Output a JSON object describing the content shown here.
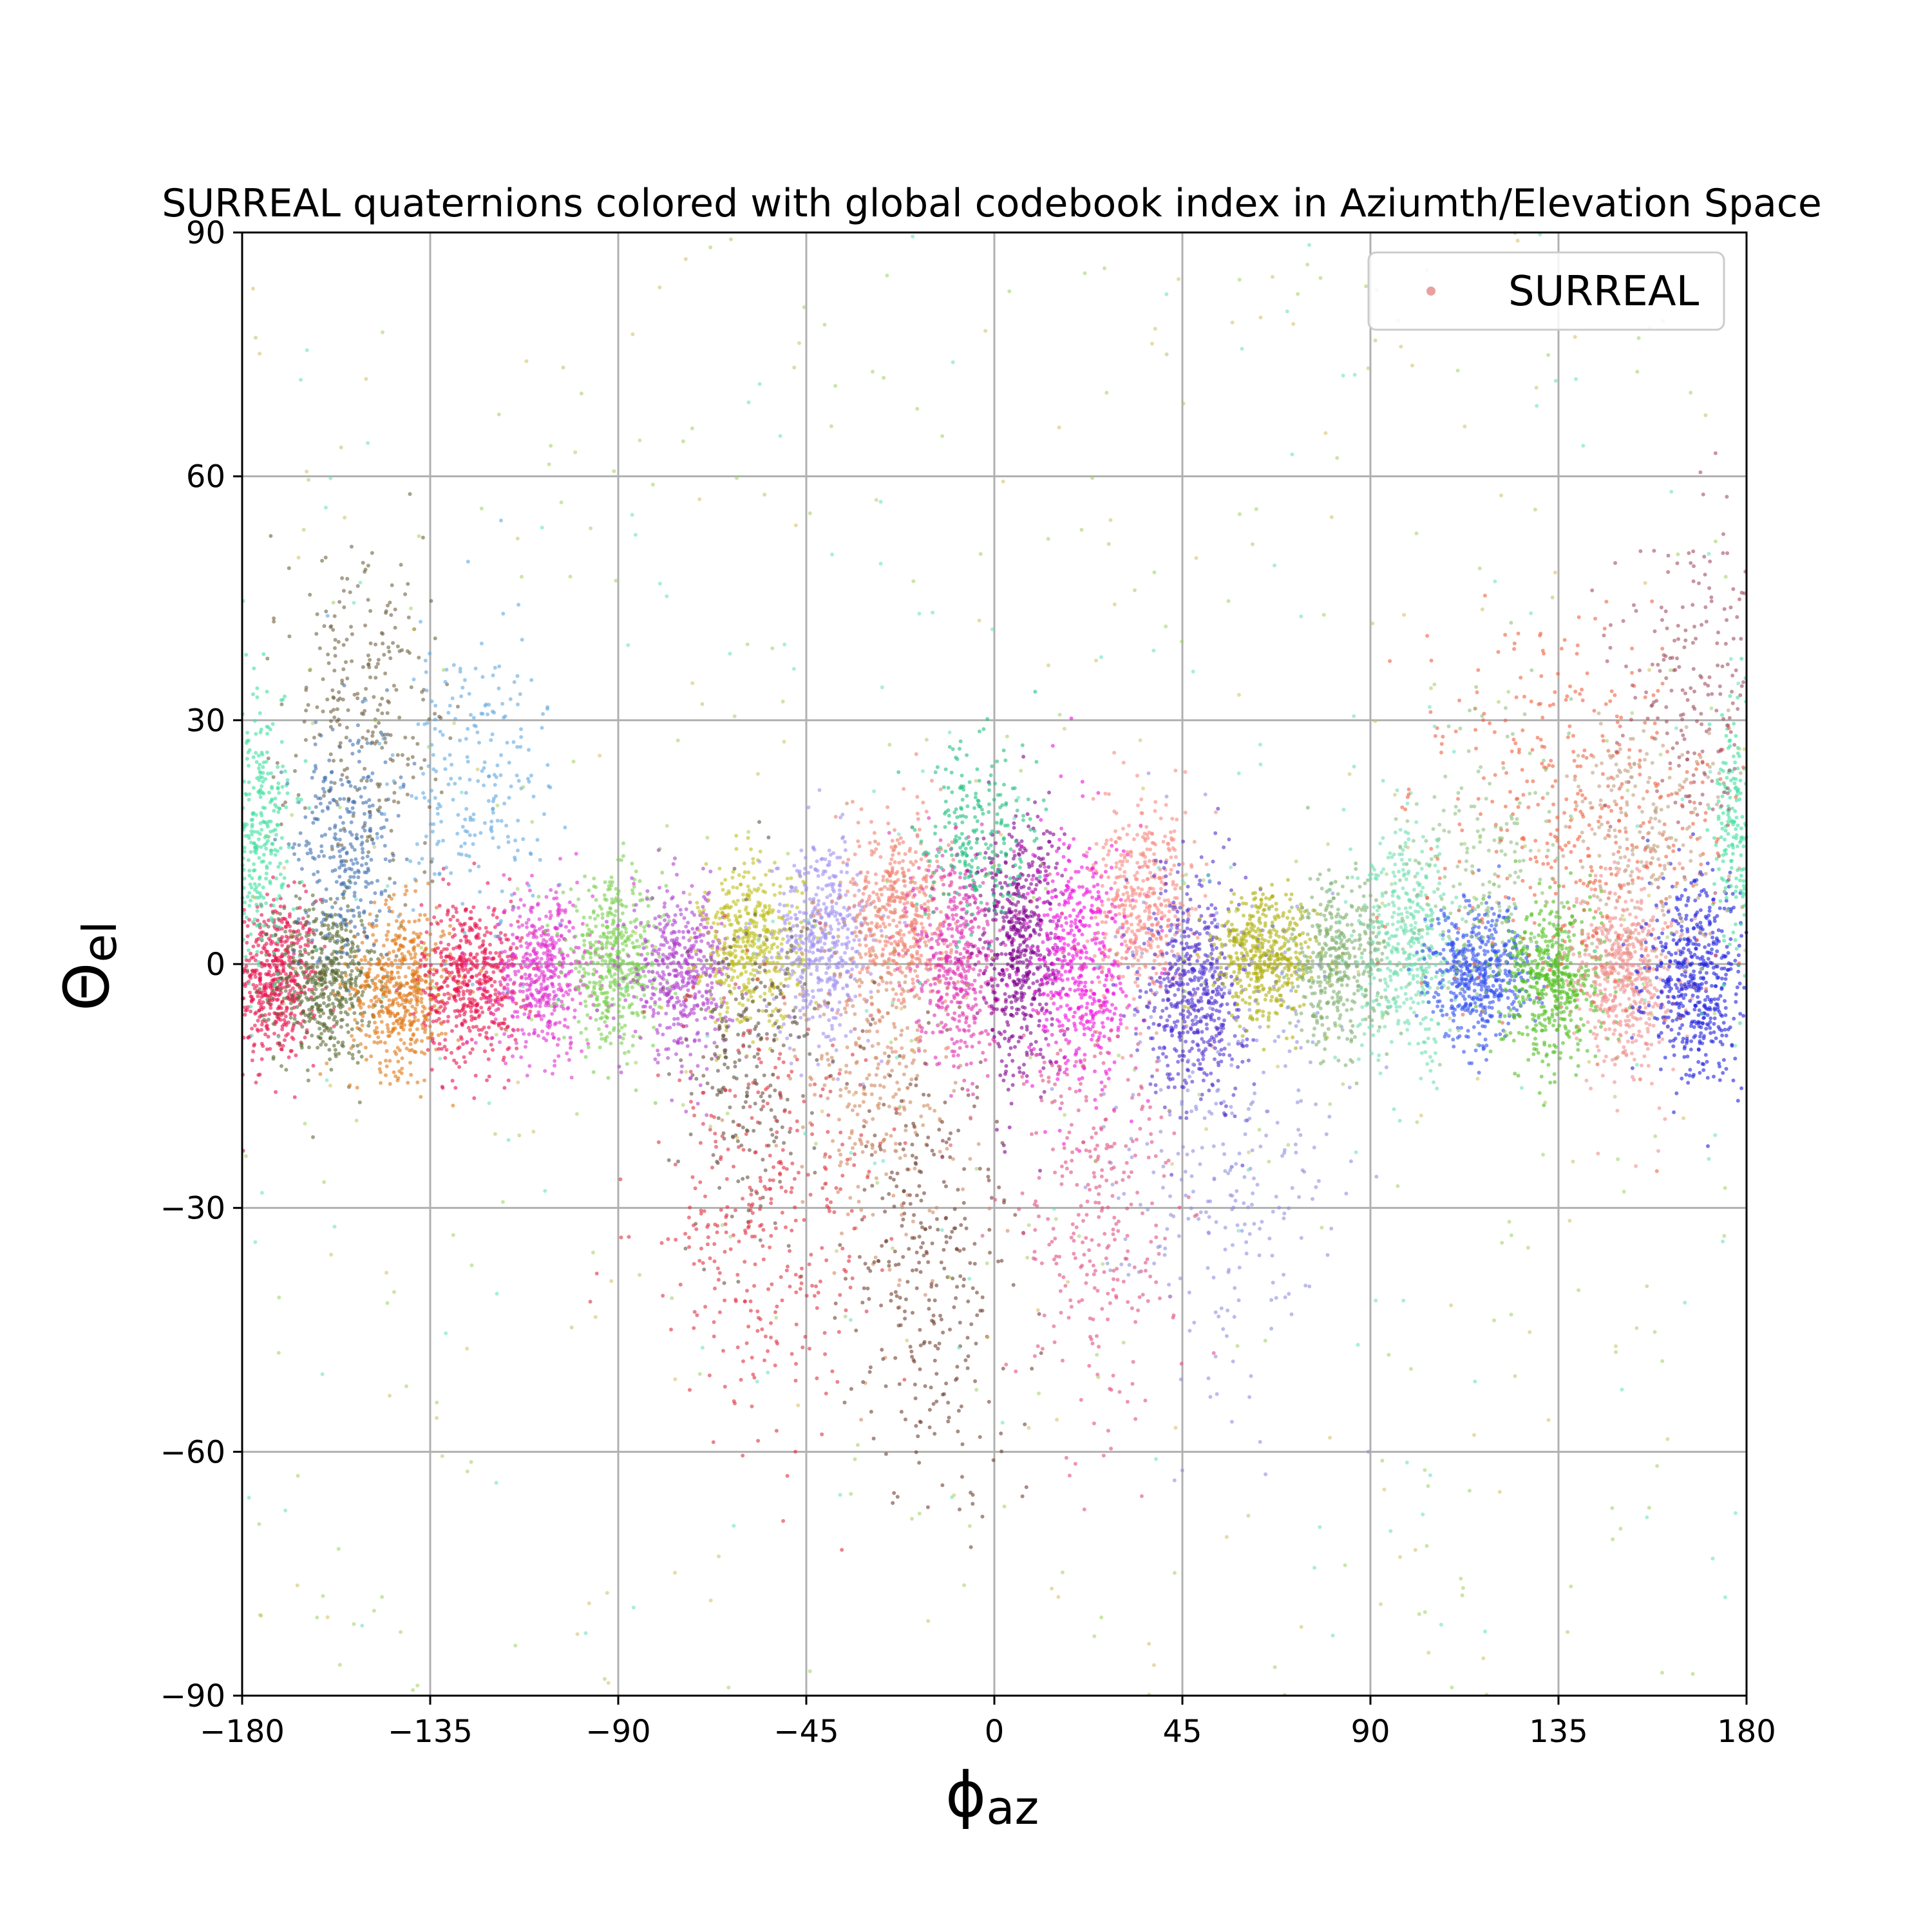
{
  "chart_data": {
    "type": "scatter",
    "title": "SURREAL quaternions colored with global codebook index in Aziumth/Elevation Space",
    "xlabel": {
      "main": "ϕ",
      "sub": "az"
    },
    "ylabel": {
      "main": "Θ",
      "sub": "el"
    },
    "xlim": [
      -180,
      180
    ],
    "ylim": [
      -90,
      90
    ],
    "xticks": [
      -180,
      -135,
      -90,
      -45,
      0,
      45,
      90,
      135,
      180
    ],
    "yticks": [
      -90,
      -60,
      -30,
      0,
      30,
      60,
      90
    ],
    "xtick_labels": [
      "−180",
      "−135",
      "−90",
      "−45",
      "0",
      "45",
      "90",
      "135",
      "180"
    ],
    "ytick_labels": [
      "−90",
      "−60",
      "−30",
      "0",
      "30",
      "60",
      "90"
    ],
    "grid": true,
    "legend": {
      "position": "top-right",
      "entries": [
        {
          "label": "SURREAL",
          "color": "#e8a0a0"
        }
      ]
    },
    "series": [
      {
        "color": "#e8104c",
        "center": [
          -172,
          -2
        ],
        "spread": [
          5,
          5
        ],
        "count": 520
      },
      {
        "color": "#5a6a34",
        "center": [
          -160,
          -2
        ],
        "spread": [
          6,
          5
        ],
        "count": 520
      },
      {
        "color": "#e07818",
        "center": [
          -142,
          -3
        ],
        "spread": [
          6,
          5
        ],
        "count": 520
      },
      {
        "color": "#e8104c",
        "center": [
          -125,
          -2
        ],
        "spread": [
          6,
          5
        ],
        "count": 520
      },
      {
        "color": "#e030d0",
        "center": [
          -108,
          -1
        ],
        "spread": [
          6,
          5
        ],
        "count": 480
      },
      {
        "color": "#7ad050",
        "center": [
          -91,
          0
        ],
        "spread": [
          6,
          5
        ],
        "count": 460
      },
      {
        "color": "#b040d0",
        "center": [
          -75,
          -1
        ],
        "spread": [
          6,
          5
        ],
        "count": 460
      },
      {
        "color": "#c0c020",
        "center": [
          -58,
          2
        ],
        "spread": [
          6,
          5
        ],
        "count": 460
      },
      {
        "color": "#a090f0",
        "center": [
          -41,
          3
        ],
        "spread": [
          6,
          6
        ],
        "count": 460
      },
      {
        "color": "#f08070",
        "center": [
          -23,
          6
        ],
        "spread": [
          6,
          6
        ],
        "count": 460
      },
      {
        "color": "#e030b0",
        "center": [
          -9,
          1
        ],
        "spread": [
          5,
          7
        ],
        "count": 460
      },
      {
        "color": "#800090",
        "center": [
          6,
          2
        ],
        "spread": [
          5,
          8
        ],
        "count": 560
      },
      {
        "color": "#f010e0",
        "center": [
          21,
          0
        ],
        "spread": [
          6,
          8
        ],
        "count": 520
      },
      {
        "color": "#f88880",
        "center": [
          36,
          7
        ],
        "spread": [
          6,
          6
        ],
        "count": 420
      },
      {
        "color": "#5030d0",
        "center": [
          48,
          -3
        ],
        "spread": [
          6,
          7
        ],
        "count": 560
      },
      {
        "color": "#b0b010",
        "center": [
          65,
          1
        ],
        "spread": [
          6,
          4
        ],
        "count": 460
      },
      {
        "color": "#80b070",
        "center": [
          82,
          0
        ],
        "spread": [
          6,
          5
        ],
        "count": 420
      },
      {
        "color": "#70e0b0",
        "center": [
          99,
          2
        ],
        "spread": [
          6,
          7
        ],
        "count": 420
      },
      {
        "color": "#3050f0",
        "center": [
          116,
          -1
        ],
        "spread": [
          6,
          4
        ],
        "count": 520
      },
      {
        "color": "#50c020",
        "center": [
          134,
          -2
        ],
        "spread": [
          6,
          5
        ],
        "count": 520
      },
      {
        "color": "#f09090",
        "center": [
          151,
          -1
        ],
        "spread": [
          6,
          6
        ],
        "count": 520
      },
      {
        "color": "#2020e0",
        "center": [
          168,
          -2
        ],
        "spread": [
          6,
          6
        ],
        "count": 520
      },
      {
        "color": "#40e0a0",
        "center": [
          -176,
          16
        ],
        "spread": [
          4,
          8
        ],
        "count": 320
      },
      {
        "color": "#40e0a0",
        "center": [
          177,
          16
        ],
        "spread": [
          3,
          8
        ],
        "count": 200
      },
      {
        "color": "#4070b0",
        "center": [
          -155,
          15
        ],
        "spread": [
          6,
          7
        ],
        "count": 300
      },
      {
        "color": "#706040",
        "center": [
          -150,
          32
        ],
        "spread": [
          9,
          10
        ],
        "count": 260
      },
      {
        "color": "#60a8e0",
        "center": [
          -125,
          22
        ],
        "spread": [
          10,
          10
        ],
        "count": 240
      },
      {
        "color": "#20c080",
        "center": [
          -5,
          15
        ],
        "spread": [
          7,
          6
        ],
        "count": 240
      },
      {
        "color": "#d08860",
        "center": [
          -28,
          -15
        ],
        "spread": [
          10,
          12
        ],
        "count": 320
      },
      {
        "color": "#605040",
        "center": [
          -58,
          -12
        ],
        "spread": [
          8,
          10
        ],
        "count": 240
      },
      {
        "color": "#e03040",
        "center": [
          -55,
          -30
        ],
        "spread": [
          14,
          14
        ],
        "count": 360
      },
      {
        "color": "#704030",
        "center": [
          -15,
          -38
        ],
        "spread": [
          10,
          14
        ],
        "count": 320
      },
      {
        "color": "#e05080",
        "center": [
          25,
          -28
        ],
        "spread": [
          10,
          14
        ],
        "count": 320
      },
      {
        "color": "#9090e0",
        "center": [
          55,
          -22
        ],
        "spread": [
          14,
          14
        ],
        "count": 300
      },
      {
        "color": "#f06040",
        "center": [
          140,
          18
        ],
        "spread": [
          18,
          12
        ],
        "count": 420
      },
      {
        "color": "#a05060",
        "center": [
          168,
          35
        ],
        "spread": [
          10,
          10
        ],
        "count": 220
      },
      {
        "color": "#c0a080",
        "center": [
          155,
          15
        ],
        "spread": [
          10,
          8
        ],
        "count": 220
      },
      {
        "color": "#90c080",
        "center": [
          118,
          12
        ],
        "spread": [
          10,
          10
        ],
        "count": 200
      },
      {
        "color": "#a0d060",
        "center": [
          0,
          0
        ],
        "spread": [
          180,
          90
        ],
        "count": 320,
        "uniform": true
      },
      {
        "color": "#60e0c0",
        "center": [
          0,
          0
        ],
        "spread": [
          180,
          90
        ],
        "count": 160,
        "uniform": true
      },
      {
        "color": "#d0c060",
        "center": [
          0,
          0
        ],
        "spread": [
          180,
          90
        ],
        "count": 160,
        "uniform": true
      }
    ]
  }
}
